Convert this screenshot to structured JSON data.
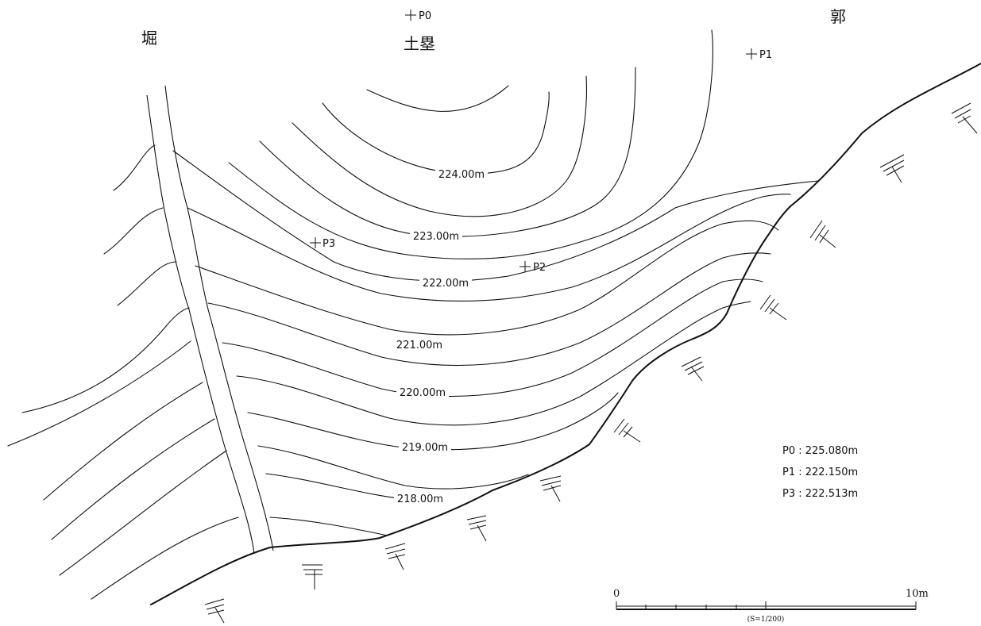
{
  "areas": {
    "ditch": "堀",
    "earthwork": "土塁",
    "enclosure": "郭"
  },
  "points": [
    {
      "id": "P0",
      "label": "P0"
    },
    {
      "id": "P1",
      "label": "P1"
    },
    {
      "id": "P2",
      "label": "P2"
    },
    {
      "id": "P3",
      "label": "P3"
    }
  ],
  "contours": [
    {
      "elevation": "224.00m"
    },
    {
      "elevation": "223.00m"
    },
    {
      "elevation": "222.00m"
    },
    {
      "elevation": "221.00m"
    },
    {
      "elevation": "220.00m"
    },
    {
      "elevation": "219.00m"
    },
    {
      "elevation": "218.00m"
    }
  ],
  "legend": {
    "p0": "P0 : 225.080m",
    "p1": "P1 : 222.150m",
    "p3": "P3 : 222.513m"
  },
  "scale": {
    "start": "0",
    "end": "10m",
    "ratio": "(S=1/200)"
  },
  "colors": {
    "line": "#111111",
    "background": "#ffffff"
  }
}
